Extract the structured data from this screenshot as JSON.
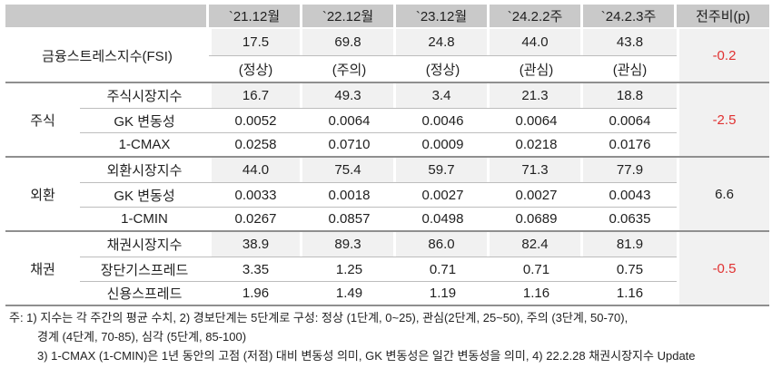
{
  "table": {
    "column_headers": [
      "`21.12월",
      "`22.12월",
      "`23.12월",
      "`24.2.2주",
      "`24.2.3주",
      "전주비(p)"
    ],
    "fsi": {
      "label": "금융스트레스지수(FSI)",
      "values": [
        "17.5",
        "69.8",
        "24.8",
        "44.0",
        "43.8"
      ],
      "statuses": [
        "(정상)",
        "(주의)",
        "(정상)",
        "(관심)",
        "(관심)"
      ],
      "wow": "-0.2",
      "wow_color": "red"
    },
    "sections": [
      {
        "group": "주식",
        "wow": "-2.5",
        "wow_color": "red",
        "rows": [
          {
            "label": "주식시장지수",
            "values": [
              "16.7",
              "49.3",
              "3.4",
              "21.3",
              "18.8"
            ]
          },
          {
            "label": "GK 변동성",
            "values": [
              "0.0052",
              "0.0064",
              "0.0046",
              "0.0064",
              "0.0064"
            ]
          },
          {
            "label": "1-CMAX",
            "values": [
              "0.0258",
              "0.0710",
              "0.0009",
              "0.0218",
              "0.0176"
            ]
          }
        ]
      },
      {
        "group": "외환",
        "wow": "6.6",
        "wow_color": "black",
        "rows": [
          {
            "label": "외환시장지수",
            "values": [
              "44.0",
              "75.4",
              "59.7",
              "71.3",
              "77.9"
            ]
          },
          {
            "label": "GK 변동성",
            "values": [
              "0.0033",
              "0.0018",
              "0.0027",
              "0.0027",
              "0.0043"
            ]
          },
          {
            "label": "1-CMIN",
            "values": [
              "0.0267",
              "0.0857",
              "0.0498",
              "0.0689",
              "0.0635"
            ]
          }
        ]
      },
      {
        "group": "채권",
        "wow": "-0.5",
        "wow_color": "red",
        "rows": [
          {
            "label": "채권시장지수",
            "values": [
              "38.9",
              "89.3",
              "86.0",
              "82.4",
              "81.9"
            ]
          },
          {
            "label": "장단기스프레드",
            "values": [
              "3.35",
              "1.25",
              "0.71",
              "0.71",
              "0.75"
            ]
          },
          {
            "label": "신용스프레드",
            "values": [
              "1.96",
              "1.49",
              "1.19",
              "1.16",
              "1.16"
            ]
          }
        ]
      }
    ]
  },
  "footnotes": [
    "주: 1) 지수는 각 주간의 평균 수치, 2) 경보단계는 5단계로 구성: 정상 (1단계, 0~25), 관심(2단계, 25~50), 주의 (3단계, 50-70),",
    "경계 (4단계, 70-85), 심각 (5단계, 85-100)",
    "3) 1-CMAX (1-CMIN)은 1년 동안의 고점 (저점) 대비 변동성 의미, GK 변동성은 일간 변동성을 의미, 4) 22.2.28 채권시장지수 Update"
  ],
  "colors": {
    "header_bg": "#c9c9c9",
    "shaded_cell_bg": "#f1f1f1",
    "section_line": "#8f8f8f",
    "subrow_line": "#bdbdbd",
    "negative_value_red": "#e03131",
    "text": "#1f1f1f"
  }
}
